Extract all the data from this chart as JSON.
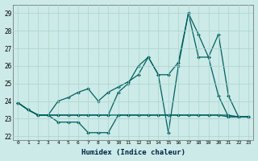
{
  "xlabel": "Humidex (Indice chaleur)",
  "ylabel": "",
  "xlim": [
    -0.5,
    23.5
  ],
  "ylim": [
    21.8,
    29.5
  ],
  "bg_color": "#cceae7",
  "grid_color": "#aad4d0",
  "line_color": "#006060",
  "xticks": [
    0,
    1,
    2,
    3,
    4,
    5,
    6,
    7,
    8,
    9,
    10,
    11,
    12,
    13,
    14,
    15,
    16,
    17,
    18,
    19,
    20,
    21,
    22,
    23
  ],
  "yticks": [
    22,
    23,
    24,
    25,
    26,
    27,
    28,
    29
  ],
  "series": [
    [
      23.9,
      23.5,
      23.2,
      23.2,
      23.2,
      23.2,
      23.2,
      23.2,
      23.2,
      23.2,
      23.2,
      23.2,
      23.2,
      23.2,
      23.2,
      23.2,
      23.2,
      23.2,
      23.2,
      23.2,
      23.2,
      23.2,
      23.1,
      23.1
    ],
    [
      23.9,
      23.5,
      23.2,
      23.2,
      22.8,
      22.8,
      22.8,
      22.2,
      22.2,
      22.2,
      23.2,
      23.2,
      23.2,
      23.2,
      23.2,
      23.2,
      23.2,
      23.2,
      23.2,
      23.2,
      23.2,
      23.1,
      23.1,
      23.1
    ],
    [
      23.9,
      23.5,
      23.2,
      23.2,
      23.2,
      23.2,
      23.2,
      23.2,
      23.2,
      23.2,
      24.5,
      25.0,
      26.0,
      26.5,
      25.5,
      22.2,
      26.0,
      29.0,
      27.8,
      26.5,
      24.3,
      23.1,
      23.1,
      23.1
    ],
    [
      23.9,
      23.5,
      23.2,
      23.2,
      24.0,
      24.2,
      24.5,
      24.7,
      24.0,
      24.5,
      24.8,
      25.1,
      25.5,
      26.5,
      25.5,
      25.5,
      26.2,
      29.0,
      26.5,
      26.5,
      27.8,
      24.3,
      23.1,
      23.1
    ]
  ]
}
